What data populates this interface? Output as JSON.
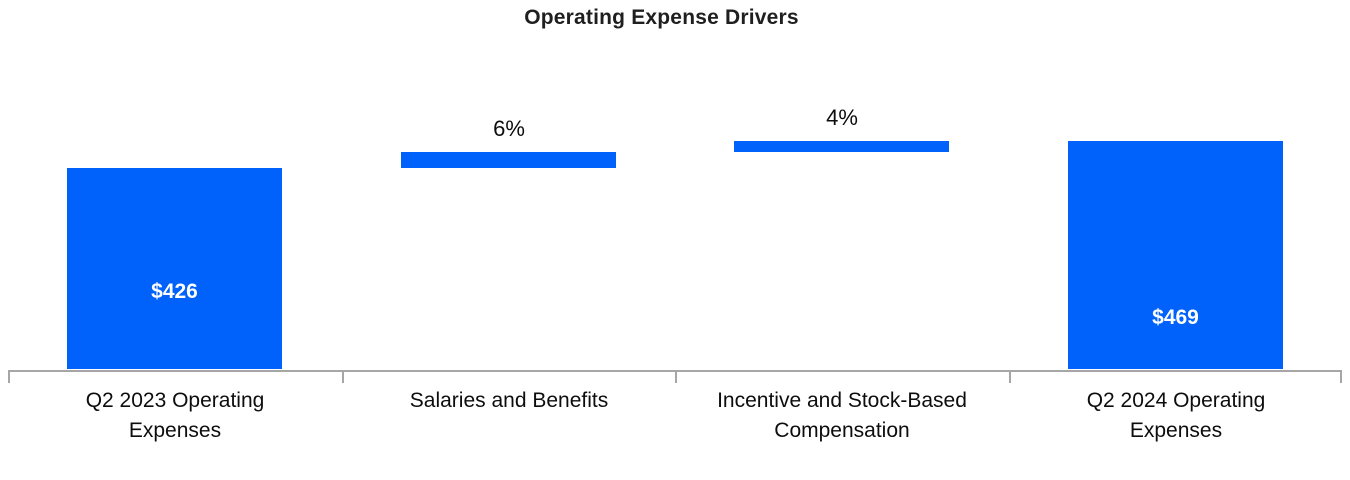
{
  "chart_data": {
    "type": "bar",
    "subtype": "waterfall",
    "title": "Operating Expense Drivers",
    "xlabel": "",
    "ylabel": "",
    "grid": false,
    "legend": false,
    "ylim": [
      112,
      500
    ],
    "categories": [
      "Q2 2023 Operating Expenses",
      "Salaries and Benefits",
      "Incentive and Stock-Based Compensation",
      "Q2 2024 Operating Expenses"
    ],
    "category_lines": [
      [
        "Q2 2023 Operating",
        "Expenses"
      ],
      [
        "Salaries and Benefits"
      ],
      [
        "Incentive and Stock-Based",
        "Compensation"
      ],
      [
        "Q2 2024 Operating",
        "Expenses"
      ]
    ],
    "bars": [
      {
        "kind": "total",
        "value": 426,
        "data_label": "$426",
        "label_position": "inside"
      },
      {
        "kind": "increase",
        "value_pct": 6,
        "value_abs": 25.6,
        "data_label": "6%",
        "label_position": "above"
      },
      {
        "kind": "increase",
        "value_pct": 4,
        "value_abs": 17.0,
        "data_label": "4%",
        "label_position": "above"
      },
      {
        "kind": "total",
        "value": 469,
        "data_label": "$469",
        "label_position": "inside"
      }
    ],
    "colors": {
      "bar": "#0061fb",
      "axis": "#a6a6a6",
      "data_label_inside": "#ffffff",
      "data_label_outside": "#0d0d0d",
      "title": "#1f1f1f"
    }
  }
}
